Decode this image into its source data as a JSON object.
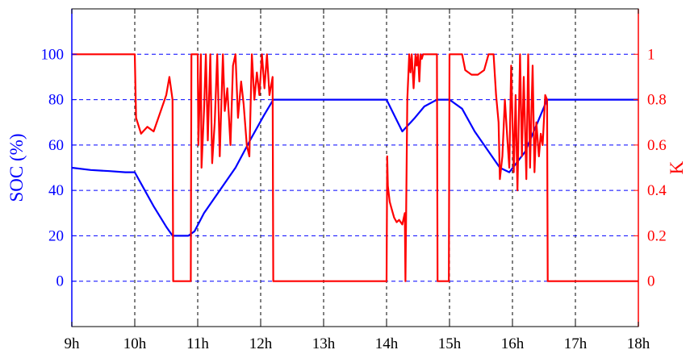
{
  "chart_data": {
    "type": "line",
    "title": "",
    "xlabel": "",
    "ylabel_left": "SOC (%)",
    "ylabel_right": "K",
    "x_unit": "hours",
    "xlim": [
      9,
      18
    ],
    "ylim_left": [
      -20,
      120
    ],
    "ylim_right": [
      -0.2,
      1.2
    ],
    "x_tick_values": [
      9,
      10,
      11,
      12,
      13,
      14,
      15,
      16,
      17,
      18
    ],
    "x_tick_labels": [
      "9h",
      "10h",
      "11h",
      "12h",
      "13h",
      "14h",
      "15h",
      "16h",
      "17h",
      "18h"
    ],
    "y_left_tick_values": [
      0,
      20,
      40,
      60,
      80,
      100
    ],
    "y_left_tick_labels": [
      "0",
      "20",
      "40",
      "60",
      "80",
      "100"
    ],
    "y_right_tick_values": [
      0,
      0.2,
      0.4,
      0.6,
      0.8,
      1
    ],
    "y_right_tick_labels": [
      "0",
      "0.2",
      "0.4",
      "0.6",
      "0.8",
      "1"
    ],
    "grid": true,
    "legend": "none",
    "series": [
      {
        "axis": "left",
        "color": "#0000ff",
        "x": [
          9.0,
          9.3,
          9.6,
          9.85,
          10.0,
          10.1,
          10.3,
          10.5,
          10.6,
          10.7,
          10.85,
          10.95,
          11.1,
          11.35,
          11.6,
          11.85,
          12.05,
          12.2,
          13.0,
          14.0,
          14.25,
          14.45,
          14.6,
          14.8,
          15.0,
          15.2,
          15.4,
          15.6,
          15.8,
          15.95,
          16.2,
          16.4,
          16.55,
          16.7,
          18.0
        ],
        "y": [
          50,
          49,
          48.5,
          48,
          48,
          43,
          33,
          24,
          20,
          20,
          20,
          22,
          30,
          40,
          50,
          63,
          73,
          80,
          80,
          80,
          66,
          72,
          77,
          80,
          80,
          76,
          66,
          58,
          50,
          48,
          57,
          70,
          80,
          80,
          80
        ]
      },
      {
        "axis": "right",
        "color": "#ff0000",
        "x": [
          9.0,
          9.01,
          9.99,
          10.0,
          10.02,
          10.1,
          10.2,
          10.3,
          10.4,
          10.5,
          10.55,
          10.6,
          10.61,
          10.89,
          10.9,
          11.0,
          11.01,
          11.05,
          11.06,
          11.1,
          11.13,
          11.16,
          11.2,
          11.23,
          11.27,
          11.31,
          11.35,
          11.4,
          11.43,
          11.47,
          11.52,
          11.56,
          11.6,
          11.64,
          11.69,
          11.73,
          11.78,
          11.82,
          11.86,
          11.9,
          11.94,
          11.98,
          12.02,
          12.06,
          12.1,
          12.14,
          12.19,
          12.2,
          14.0,
          14.01,
          14.02,
          14.05,
          14.08,
          14.12,
          14.16,
          14.2,
          14.25,
          14.29,
          14.3,
          14.33,
          14.36,
          14.38,
          14.4,
          14.43,
          14.46,
          14.48,
          14.5,
          14.52,
          14.54,
          14.56,
          14.58,
          14.6,
          14.8,
          14.81,
          14.99,
          15.0,
          15.01,
          15.05,
          15.2,
          15.25,
          15.35,
          15.45,
          15.55,
          15.62,
          15.66,
          15.7,
          15.74,
          15.78,
          15.8,
          15.84,
          15.88,
          15.92,
          15.95,
          15.98,
          16.02,
          16.05,
          16.08,
          16.12,
          16.15,
          16.18,
          16.22,
          16.25,
          16.28,
          16.32,
          16.35,
          16.38,
          16.42,
          16.45,
          16.48,
          16.52,
          16.55,
          16.56,
          18.0
        ],
        "y": [
          1.0,
          1.0,
          1.0,
          1.0,
          0.72,
          0.65,
          0.68,
          0.66,
          0.74,
          0.82,
          0.9,
          0.8,
          0.0,
          0.0,
          1.0,
          1.0,
          0.6,
          1.0,
          0.5,
          0.75,
          1.0,
          0.62,
          1.0,
          0.52,
          0.7,
          1.0,
          0.55,
          1.0,
          0.75,
          0.85,
          0.6,
          0.95,
          1.0,
          0.72,
          0.88,
          0.78,
          0.6,
          0.55,
          1.0,
          0.8,
          0.92,
          0.82,
          1.0,
          0.85,
          1.0,
          0.82,
          0.9,
          0.0,
          0.0,
          0.55,
          0.42,
          0.35,
          0.32,
          0.28,
          0.26,
          0.27,
          0.25,
          0.3,
          0.0,
          0.8,
          1.0,
          0.92,
          1.0,
          0.85,
          1.0,
          0.95,
          1.0,
          0.88,
          1.0,
          0.98,
          1.0,
          1.0,
          1.0,
          0.0,
          0.0,
          1.0,
          1.0,
          1.0,
          1.0,
          0.93,
          0.91,
          0.91,
          0.93,
          1.0,
          1.0,
          1.0,
          0.82,
          0.7,
          0.45,
          0.55,
          0.8,
          0.62,
          0.5,
          0.95,
          0.48,
          0.82,
          0.4,
          1.0,
          0.55,
          0.9,
          0.45,
          1.0,
          0.5,
          0.95,
          0.48,
          0.7,
          0.55,
          0.65,
          0.6,
          0.82,
          0.8,
          0.0,
          0.0
        ]
      }
    ]
  }
}
